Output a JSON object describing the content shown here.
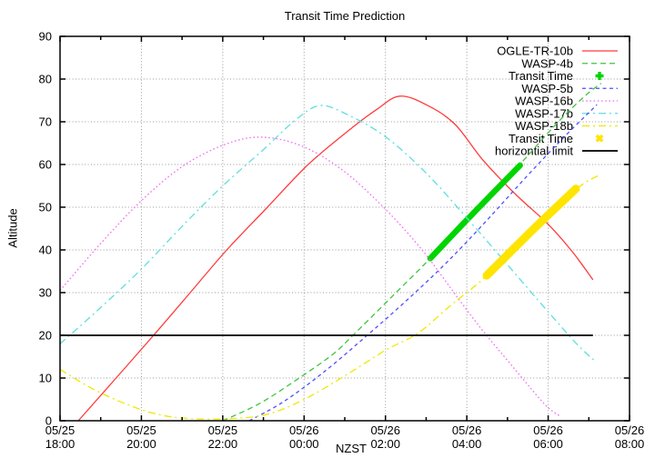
{
  "title": "Transit Time Prediction",
  "chart_data": {
    "type": "line",
    "title": "Transit Time Prediction",
    "xlabel": "NZST",
    "ylabel": "Altitude",
    "ylim": [
      0,
      90
    ],
    "y_ticks": [
      0,
      10,
      20,
      30,
      40,
      50,
      60,
      70,
      80,
      90
    ],
    "x_start": "05/25 18:00",
    "xlim_hours": [
      0,
      14
    ],
    "x_minor_tick_hours": 1,
    "grid": true,
    "legend_position": "top-right-inside",
    "x_ticks": [
      {
        "h": 0,
        "date": "05/25",
        "time": "18:00"
      },
      {
        "h": 2,
        "date": "05/25",
        "time": "20:00"
      },
      {
        "h": 4,
        "date": "05/25",
        "time": "22:00"
      },
      {
        "h": 6,
        "date": "05/26",
        "time": "00:00"
      },
      {
        "h": 8,
        "date": "05/26",
        "time": "02:00"
      },
      {
        "h": 10,
        "date": "05/26",
        "time": "04:00"
      },
      {
        "h": 12,
        "date": "05/26",
        "time": "06:00"
      },
      {
        "h": 14,
        "date": "05/26",
        "time": "08:00"
      }
    ],
    "series": [
      {
        "name": "OGLE-TR-10b",
        "color": "#ff3b3b",
        "style": "solid",
        "width": 1.3,
        "points": [
          [
            0.45,
            0
          ],
          [
            1.1,
            7
          ],
          [
            2.3,
            20
          ],
          [
            3.2,
            30
          ],
          [
            4.1,
            40
          ],
          [
            5.1,
            50
          ],
          [
            6.1,
            60
          ],
          [
            7.1,
            68
          ],
          [
            7.8,
            73
          ],
          [
            8.35,
            76
          ],
          [
            9.0,
            74
          ],
          [
            9.7,
            69.5
          ],
          [
            10.4,
            61
          ],
          [
            11.2,
            53
          ],
          [
            12.0,
            46
          ],
          [
            12.6,
            39.5
          ],
          [
            13.1,
            33
          ]
        ]
      },
      {
        "name": "WASP-4b",
        "color": "#3ec43e",
        "style": "dashed",
        "width": 1.3,
        "points": [
          [
            4.0,
            0
          ],
          [
            4.9,
            4
          ],
          [
            5.8,
            9.5
          ],
          [
            6.7,
            15.5
          ],
          [
            7.2,
            20
          ],
          [
            8.1,
            28.5
          ],
          [
            9.1,
            38
          ],
          [
            10.2,
            49
          ],
          [
            11.3,
            60
          ],
          [
            12.2,
            69.5
          ],
          [
            12.9,
            76
          ],
          [
            13.3,
            79
          ]
        ]
      },
      {
        "name": "Transit Time",
        "color": "#00d500",
        "style": "marker-plus",
        "width": 6.5,
        "points": [
          [
            9.1,
            38
          ],
          [
            10.2,
            49
          ],
          [
            11.31,
            59.8
          ]
        ]
      },
      {
        "name": "WASP-5b",
        "color": "#4f4fff",
        "style": "dashed-short",
        "width": 1.3,
        "points": [
          [
            4.65,
            0
          ],
          [
            5.5,
            4.5
          ],
          [
            6.5,
            11.5
          ],
          [
            7.55,
            20
          ],
          [
            8.5,
            28
          ],
          [
            9.5,
            37
          ],
          [
            10.5,
            47
          ],
          [
            11.5,
            57.5
          ],
          [
            12.4,
            66.5
          ],
          [
            13.2,
            74
          ]
        ]
      },
      {
        "name": "WASP-16b",
        "color": "#f06df0",
        "style": "dotted",
        "width": 1.3,
        "points": [
          [
            0,
            30.5
          ],
          [
            1,
            41.5
          ],
          [
            2,
            51.5
          ],
          [
            3,
            59.5
          ],
          [
            4,
            64.5
          ],
          [
            4.9,
            66.4
          ],
          [
            5.9,
            64.5
          ],
          [
            6.9,
            59
          ],
          [
            7.9,
            50.5
          ],
          [
            8.9,
            40
          ],
          [
            9.8,
            28.5
          ],
          [
            10.4,
            21
          ],
          [
            11.1,
            13
          ],
          [
            11.9,
            4
          ],
          [
            12.3,
            1
          ]
        ]
      },
      {
        "name": "WASP-17b",
        "color": "#5fdede",
        "style": "dashdot",
        "width": 1.3,
        "points": [
          [
            0,
            18
          ],
          [
            1,
            26.5
          ],
          [
            2,
            35.5
          ],
          [
            3,
            45.5
          ],
          [
            4,
            55
          ],
          [
            5,
            63.5
          ],
          [
            5.8,
            70.5
          ],
          [
            6.4,
            73.8
          ],
          [
            7.1,
            71.5
          ],
          [
            8,
            66.5
          ],
          [
            9,
            58
          ],
          [
            10,
            47.5
          ],
          [
            11,
            36.5
          ],
          [
            12,
            25.5
          ],
          [
            12.7,
            18
          ],
          [
            13.15,
            14
          ]
        ]
      },
      {
        "name": "WASP-18b",
        "color": "#efe800",
        "style": "dashdot",
        "width": 1.3,
        "points": [
          [
            0,
            12
          ],
          [
            0.8,
            7.5
          ],
          [
            1.6,
            4
          ],
          [
            2.4,
            1.5
          ],
          [
            3.2,
            0.5
          ],
          [
            4.2,
            0.5
          ],
          [
            5.1,
            1.5
          ],
          [
            6,
            5
          ],
          [
            7,
            10.5
          ],
          [
            8,
            16.5
          ],
          [
            8.8,
            20.5
          ],
          [
            9.6,
            27
          ],
          [
            10.5,
            34
          ],
          [
            11.6,
            44.5
          ],
          [
            12.7,
            54.3
          ],
          [
            13.25,
            57.5
          ]
        ]
      },
      {
        "name": "Transit Time",
        "color": "#ffe400",
        "style": "marker-x",
        "width": 9,
        "points": [
          [
            10.49,
            34
          ],
          [
            11.6,
            44.5
          ],
          [
            12.68,
            54.3
          ]
        ]
      },
      {
        "name": "horizontial limit",
        "color": "#1c1c1c",
        "style": "solid",
        "width": 2,
        "points": [
          [
            0,
            20
          ],
          [
            13.1,
            20
          ]
        ]
      }
    ],
    "colors": {
      "grid": "#9a9a9a",
      "axis": "#000000",
      "background": "#ffffff"
    }
  }
}
